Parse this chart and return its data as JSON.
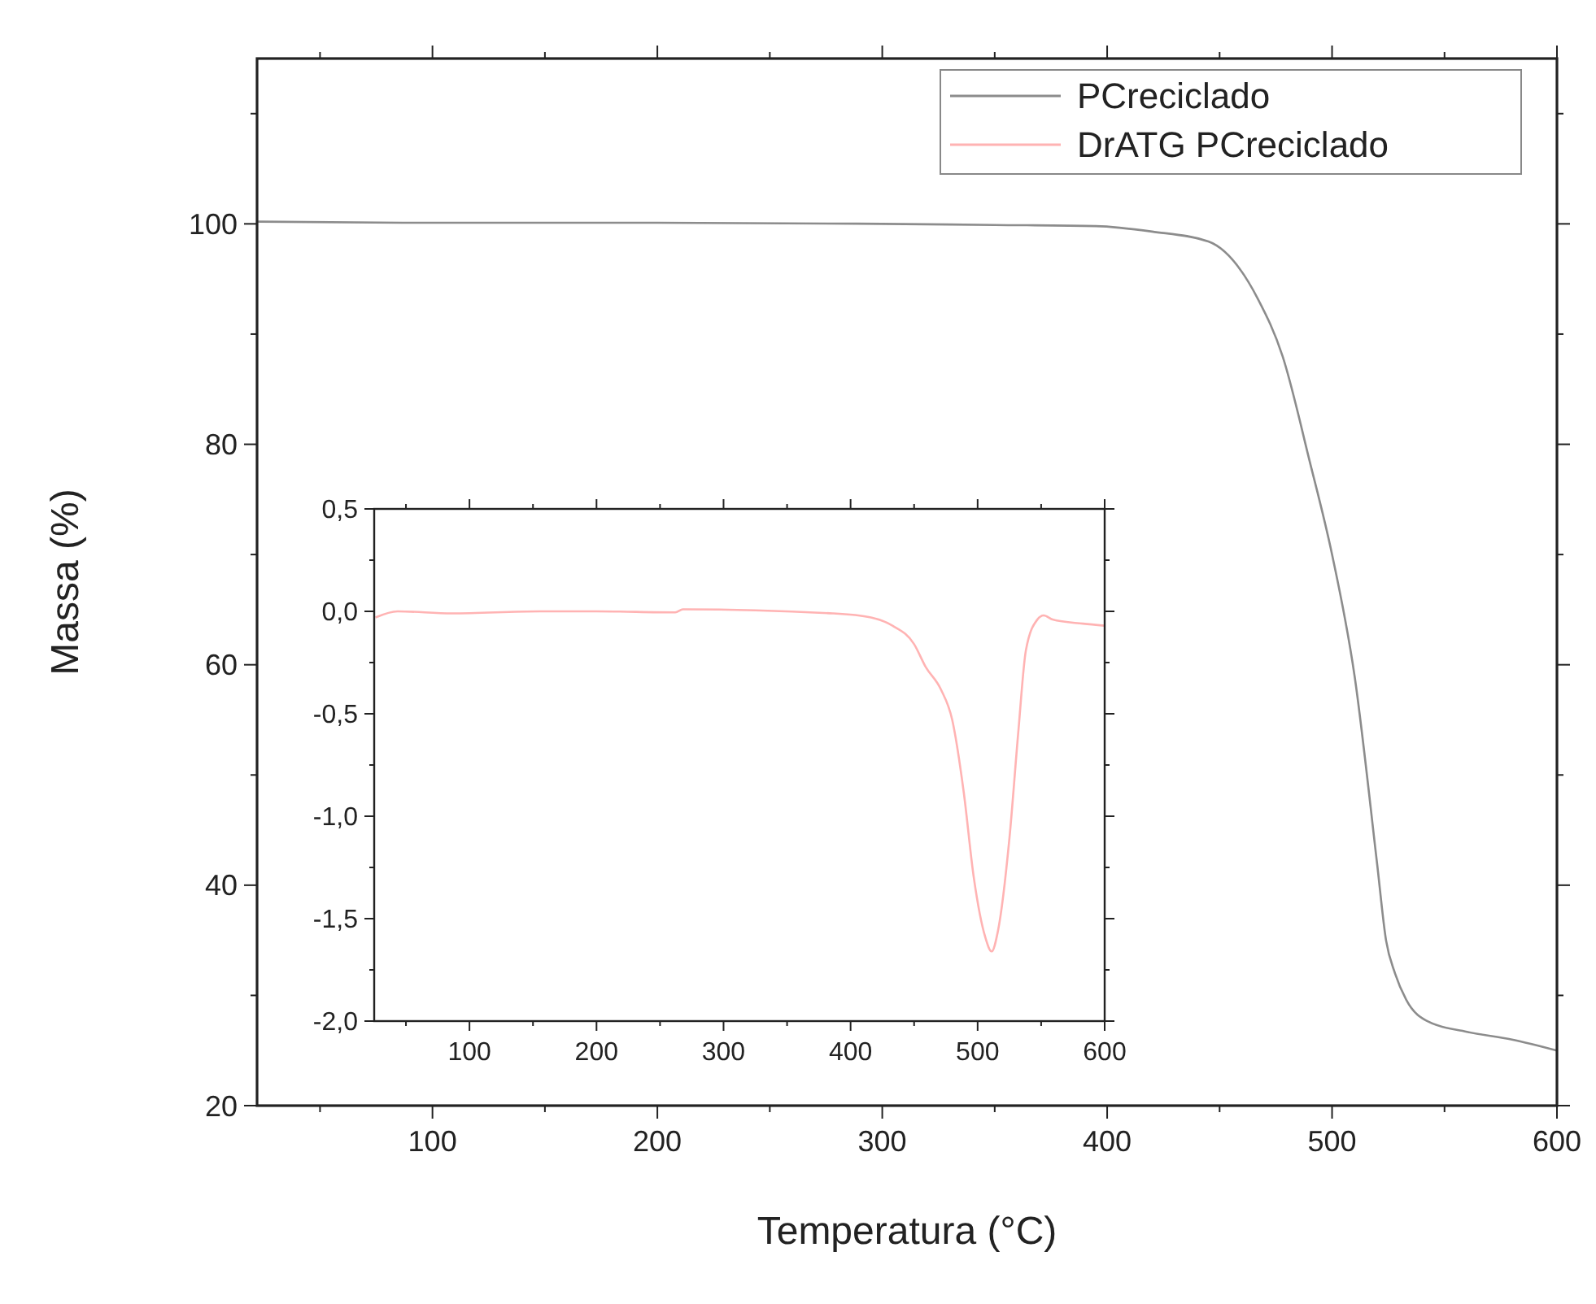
{
  "chart_data": [
    {
      "type": "line",
      "xlabel": "Temperatura (°C)",
      "ylabel": "Massa (%)",
      "xlim": [
        22,
        600
      ],
      "ylim": [
        20,
        115
      ],
      "xticks": [
        {
          "value": 50,
          "label": null
        },
        100,
        {
          "value": 150,
          "label": null
        },
        200,
        {
          "value": 250,
          "label": null
        },
        300,
        {
          "value": 350,
          "label": null
        },
        400,
        {
          "value": 450,
          "label": null
        },
        500,
        {
          "value": 550,
          "label": null
        },
        600
      ],
      "yticks": [
        20,
        {
          "value": 30,
          "label": null
        },
        40,
        {
          "value": 50,
          "label": null
        },
        60,
        {
          "value": 70,
          "label": null
        },
        80,
        {
          "value": 90,
          "label": null
        },
        100,
        {
          "value": 110,
          "label": null
        }
      ],
      "legend": "top right",
      "grid": false,
      "series": [
        {
          "name": "PCreciclado",
          "color": "#8c8c8c",
          "x": [
            22,
            100,
            200,
            300,
            350,
            395,
            420,
            445,
            467,
            478,
            490,
            500,
            510,
            520,
            524,
            528,
            533,
            543,
            560,
            580,
            600
          ],
          "values": [
            100.2,
            100.1,
            100.1,
            100,
            99.9,
            99.8,
            99.3,
            98.4,
            93.2,
            88,
            78.5,
            70,
            59,
            42,
            35,
            32,
            29.6,
            27.6,
            26.7,
            26,
            25
          ]
        }
      ]
    },
    {
      "type": "line",
      "xlim": [
        25,
        600
      ],
      "ylim": [
        -2,
        0.5
      ],
      "xticks": [
        {
          "value": 50,
          "label": null
        },
        100,
        {
          "value": 150,
          "label": null
        },
        200,
        {
          "value": 250,
          "label": null
        },
        300,
        {
          "value": 350,
          "label": null
        },
        400,
        {
          "value": 450,
          "label": null
        },
        500,
        {
          "value": 550,
          "label": null
        },
        600
      ],
      "yticks": [
        {
          "value": -2,
          "label": "-2,0"
        },
        {
          "value": -1.75,
          "label": null
        },
        {
          "value": -1.5,
          "label": "-1,5"
        },
        {
          "value": -1.25,
          "label": null
        },
        {
          "value": -1,
          "label": "-1,0"
        },
        {
          "value": -0.75,
          "label": null
        },
        {
          "value": -0.5,
          "label": "-0,5"
        },
        {
          "value": -0.25,
          "label": null
        },
        {
          "value": 0,
          "label": "0,0"
        },
        {
          "value": 0.25,
          "label": null
        },
        {
          "value": 0.5,
          "label": "0,5"
        }
      ],
      "grid": false,
      "series": [
        {
          "name": "DrATG PCreciclado",
          "color": "#ffb3b3",
          "x": [
            26,
            43.5,
            86,
            155,
            200,
            262,
            268,
            386,
            416,
            433,
            450,
            459,
            471,
            480,
            489,
            497,
            506,
            511,
            516,
            525,
            532,
            538,
            547,
            552,
            559,
            583,
            600
          ],
          "values": [
            -0.03,
            0,
            -0.01,
            0,
            0,
            -0.005,
            0.01,
            -0.01,
            -0.03,
            -0.07,
            -0.16,
            -0.27,
            -0.38,
            -0.53,
            -0.88,
            -1.3,
            -1.59,
            -1.66,
            -1.56,
            -1.11,
            -0.59,
            -0.19,
            -0.04,
            -0.02,
            -0.04,
            -0.06,
            -0.07
          ]
        }
      ]
    }
  ]
}
